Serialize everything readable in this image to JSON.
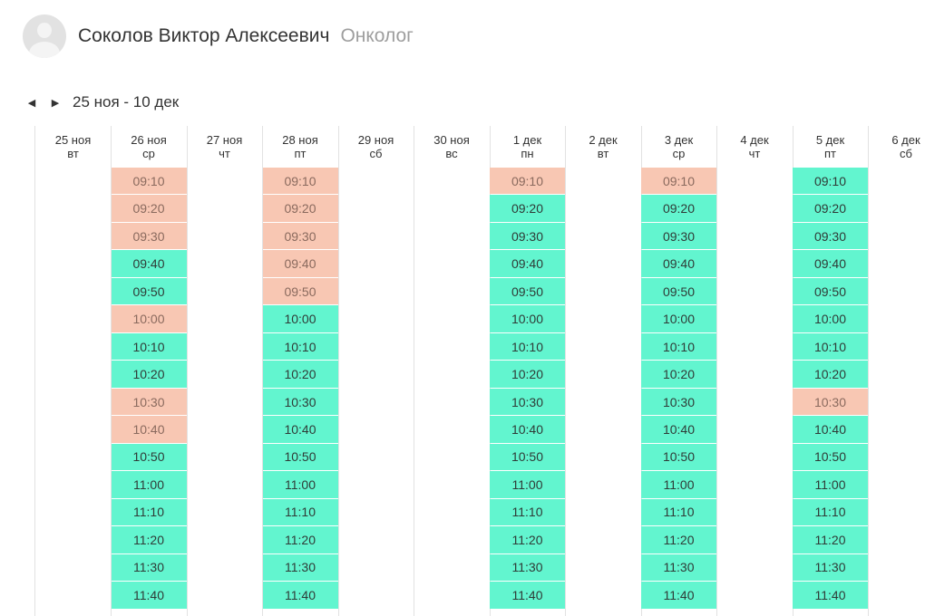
{
  "doctor": {
    "name": "Соколов Виктор Алексеевич",
    "specialty": "Онколог"
  },
  "navigation": {
    "date_range": "25 ноя - 10 дек"
  },
  "days": [
    {
      "date": "25 ноя",
      "weekday": "вт",
      "slots": []
    },
    {
      "date": "26 ноя",
      "weekday": "ср",
      "slots": [
        {
          "time": "09:10",
          "status": "busy"
        },
        {
          "time": "09:20",
          "status": "busy"
        },
        {
          "time": "09:30",
          "status": "busy"
        },
        {
          "time": "09:40",
          "status": "free"
        },
        {
          "time": "09:50",
          "status": "free"
        },
        {
          "time": "10:00",
          "status": "busy"
        },
        {
          "time": "10:10",
          "status": "free"
        },
        {
          "time": "10:20",
          "status": "free"
        },
        {
          "time": "10:30",
          "status": "busy"
        },
        {
          "time": "10:40",
          "status": "busy"
        },
        {
          "time": "10:50",
          "status": "free"
        },
        {
          "time": "11:00",
          "status": "free"
        },
        {
          "time": "11:10",
          "status": "free"
        },
        {
          "time": "11:20",
          "status": "free"
        },
        {
          "time": "11:30",
          "status": "free"
        },
        {
          "time": "11:40",
          "status": "free"
        }
      ]
    },
    {
      "date": "27 ноя",
      "weekday": "чт",
      "slots": []
    },
    {
      "date": "28 ноя",
      "weekday": "пт",
      "slots": [
        {
          "time": "09:10",
          "status": "busy"
        },
        {
          "time": "09:20",
          "status": "busy"
        },
        {
          "time": "09:30",
          "status": "busy"
        },
        {
          "time": "09:40",
          "status": "busy"
        },
        {
          "time": "09:50",
          "status": "busy"
        },
        {
          "time": "10:00",
          "status": "free"
        },
        {
          "time": "10:10",
          "status": "free"
        },
        {
          "time": "10:20",
          "status": "free"
        },
        {
          "time": "10:30",
          "status": "free"
        },
        {
          "time": "10:40",
          "status": "free"
        },
        {
          "time": "10:50",
          "status": "free"
        },
        {
          "time": "11:00",
          "status": "free"
        },
        {
          "time": "11:10",
          "status": "free"
        },
        {
          "time": "11:20",
          "status": "free"
        },
        {
          "time": "11:30",
          "status": "free"
        },
        {
          "time": "11:40",
          "status": "free"
        }
      ]
    },
    {
      "date": "29 ноя",
      "weekday": "сб",
      "slots": []
    },
    {
      "date": "30 ноя",
      "weekday": "вс",
      "slots": []
    },
    {
      "date": "1 дек",
      "weekday": "пн",
      "slots": [
        {
          "time": "09:10",
          "status": "busy"
        },
        {
          "time": "09:20",
          "status": "free"
        },
        {
          "time": "09:30",
          "status": "free"
        },
        {
          "time": "09:40",
          "status": "free"
        },
        {
          "time": "09:50",
          "status": "free"
        },
        {
          "time": "10:00",
          "status": "free"
        },
        {
          "time": "10:10",
          "status": "free"
        },
        {
          "time": "10:20",
          "status": "free"
        },
        {
          "time": "10:30",
          "status": "free"
        },
        {
          "time": "10:40",
          "status": "free"
        },
        {
          "time": "10:50",
          "status": "free"
        },
        {
          "time": "11:00",
          "status": "free"
        },
        {
          "time": "11:10",
          "status": "free"
        },
        {
          "time": "11:20",
          "status": "free"
        },
        {
          "time": "11:30",
          "status": "free"
        },
        {
          "time": "11:40",
          "status": "free"
        }
      ]
    },
    {
      "date": "2 дек",
      "weekday": "вт",
      "slots": []
    },
    {
      "date": "3 дек",
      "weekday": "ср",
      "slots": [
        {
          "time": "09:10",
          "status": "busy"
        },
        {
          "time": "09:20",
          "status": "free"
        },
        {
          "time": "09:30",
          "status": "free"
        },
        {
          "time": "09:40",
          "status": "free"
        },
        {
          "time": "09:50",
          "status": "free"
        },
        {
          "time": "10:00",
          "status": "free"
        },
        {
          "time": "10:10",
          "status": "free"
        },
        {
          "time": "10:20",
          "status": "free"
        },
        {
          "time": "10:30",
          "status": "free"
        },
        {
          "time": "10:40",
          "status": "free"
        },
        {
          "time": "10:50",
          "status": "free"
        },
        {
          "time": "11:00",
          "status": "free"
        },
        {
          "time": "11:10",
          "status": "free"
        },
        {
          "time": "11:20",
          "status": "free"
        },
        {
          "time": "11:30",
          "status": "free"
        },
        {
          "time": "11:40",
          "status": "free"
        }
      ]
    },
    {
      "date": "4 дек",
      "weekday": "чт",
      "slots": []
    },
    {
      "date": "5 дек",
      "weekday": "пт",
      "slots": [
        {
          "time": "09:10",
          "status": "free"
        },
        {
          "time": "09:20",
          "status": "free"
        },
        {
          "time": "09:30",
          "status": "free"
        },
        {
          "time": "09:40",
          "status": "free"
        },
        {
          "time": "09:50",
          "status": "free"
        },
        {
          "time": "10:00",
          "status": "free"
        },
        {
          "time": "10:10",
          "status": "free"
        },
        {
          "time": "10:20",
          "status": "free"
        },
        {
          "time": "10:30",
          "status": "busy"
        },
        {
          "time": "10:40",
          "status": "free"
        },
        {
          "time": "10:50",
          "status": "free"
        },
        {
          "time": "11:00",
          "status": "free"
        },
        {
          "time": "11:10",
          "status": "free"
        },
        {
          "time": "11:20",
          "status": "free"
        },
        {
          "time": "11:30",
          "status": "free"
        },
        {
          "time": "11:40",
          "status": "free"
        }
      ]
    },
    {
      "date": "6 дек",
      "weekday": "сб",
      "slots": []
    }
  ],
  "colors": {
    "free_slot": "#62f5cf",
    "busy_slot": "#f8c7b3",
    "grid_line": "#e2e2e2"
  }
}
